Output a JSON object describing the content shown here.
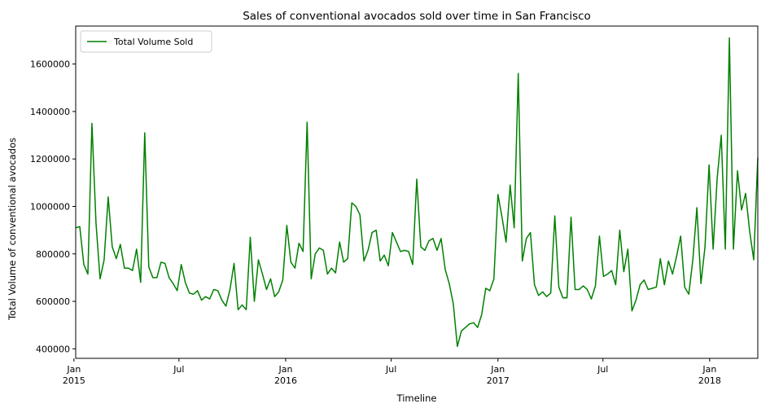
{
  "chart_data": {
    "type": "line",
    "title": "Sales of conventional avocados sold over time in San Francisco",
    "xlabel": "Timeline",
    "ylabel": "Total Volume of conventional avocados",
    "ylim": [
      360000,
      1760000
    ],
    "xlim": [
      "2015-01-04",
      "2018-03-25"
    ],
    "grid": false,
    "legend_position": "top-left",
    "colors": {
      "line": "#008000",
      "axis": "#000000"
    },
    "y_ticks": [
      400000,
      600000,
      800000,
      1000000,
      1200000,
      1400000,
      1600000
    ],
    "y_tick_labels": [
      "400000",
      "600000",
      "800000",
      "1000000",
      "1200000",
      "1400000",
      "1600000"
    ],
    "x_ticks": [
      {
        "date": "2015-01-01",
        "label": "Jan",
        "sublabel": "2015"
      },
      {
        "date": "2015-07-01",
        "label": "Jul",
        "sublabel": ""
      },
      {
        "date": "2016-01-01",
        "label": "Jan",
        "sublabel": "2016"
      },
      {
        "date": "2016-07-01",
        "label": "Jul",
        "sublabel": ""
      },
      {
        "date": "2017-01-01",
        "label": "Jan",
        "sublabel": "2017"
      },
      {
        "date": "2017-07-01",
        "label": "Jul",
        "sublabel": ""
      },
      {
        "date": "2018-01-01",
        "label": "Jan",
        "sublabel": "2018"
      }
    ],
    "series": [
      {
        "name": "Total Volume Sold",
        "color": "#008000",
        "x": [
          "2015-01-04",
          "2015-01-11",
          "2015-01-18",
          "2015-01-25",
          "2015-02-01",
          "2015-02-08",
          "2015-02-15",
          "2015-02-22",
          "2015-03-01",
          "2015-03-08",
          "2015-03-15",
          "2015-03-22",
          "2015-03-29",
          "2015-04-05",
          "2015-04-12",
          "2015-04-19",
          "2015-04-26",
          "2015-05-03",
          "2015-05-10",
          "2015-05-17",
          "2015-05-24",
          "2015-05-31",
          "2015-06-07",
          "2015-06-14",
          "2015-06-21",
          "2015-06-28",
          "2015-07-05",
          "2015-07-12",
          "2015-07-19",
          "2015-07-26",
          "2015-08-02",
          "2015-08-09",
          "2015-08-16",
          "2015-08-23",
          "2015-08-30",
          "2015-09-06",
          "2015-09-13",
          "2015-09-20",
          "2015-09-27",
          "2015-10-04",
          "2015-10-11",
          "2015-10-18",
          "2015-10-25",
          "2015-11-01",
          "2015-11-08",
          "2015-11-15",
          "2015-11-22",
          "2015-11-29",
          "2015-12-06",
          "2015-12-13",
          "2015-12-20",
          "2015-12-27",
          "2016-01-03",
          "2016-01-10",
          "2016-01-17",
          "2016-01-24",
          "2016-01-31",
          "2016-02-07",
          "2016-02-14",
          "2016-02-21",
          "2016-02-28",
          "2016-03-06",
          "2016-03-13",
          "2016-03-20",
          "2016-03-27",
          "2016-04-03",
          "2016-04-10",
          "2016-04-17",
          "2016-04-24",
          "2016-05-01",
          "2016-05-08",
          "2016-05-15",
          "2016-05-22",
          "2016-05-29",
          "2016-06-05",
          "2016-06-12",
          "2016-06-19",
          "2016-06-26",
          "2016-07-03",
          "2016-07-10",
          "2016-07-17",
          "2016-07-24",
          "2016-07-31",
          "2016-08-07",
          "2016-08-14",
          "2016-08-21",
          "2016-08-28",
          "2016-09-04",
          "2016-09-11",
          "2016-09-18",
          "2016-09-25",
          "2016-10-02",
          "2016-10-09",
          "2016-10-16",
          "2016-10-23",
          "2016-10-30",
          "2016-11-06",
          "2016-11-13",
          "2016-11-20",
          "2016-11-27",
          "2016-12-04",
          "2016-12-11",
          "2016-12-18",
          "2016-12-25",
          "2017-01-01",
          "2017-01-08",
          "2017-01-15",
          "2017-01-22",
          "2017-01-29",
          "2017-02-05",
          "2017-02-12",
          "2017-02-19",
          "2017-02-26",
          "2017-03-05",
          "2017-03-12",
          "2017-03-19",
          "2017-03-26",
          "2017-04-02",
          "2017-04-09",
          "2017-04-16",
          "2017-04-23",
          "2017-04-30",
          "2017-05-07",
          "2017-05-14",
          "2017-05-21",
          "2017-05-28",
          "2017-06-04",
          "2017-06-11",
          "2017-06-18",
          "2017-06-25",
          "2017-07-02",
          "2017-07-09",
          "2017-07-16",
          "2017-07-23",
          "2017-07-30",
          "2017-08-06",
          "2017-08-13",
          "2017-08-20",
          "2017-08-27",
          "2017-09-03",
          "2017-09-10",
          "2017-09-17",
          "2017-09-24",
          "2017-10-01",
          "2017-10-08",
          "2017-10-15",
          "2017-10-22",
          "2017-10-29",
          "2017-11-05",
          "2017-11-12",
          "2017-11-19",
          "2017-11-26",
          "2017-12-03",
          "2017-12-10",
          "2017-12-17",
          "2017-12-24",
          "2017-12-31",
          "2018-01-07",
          "2018-01-14",
          "2018-01-21",
          "2018-01-28",
          "2018-02-04",
          "2018-02-11",
          "2018-02-18",
          "2018-02-25",
          "2018-03-04",
          "2018-03-11",
          "2018-03-18",
          "2018-03-25"
        ],
        "values": [
          910000,
          915000,
          755000,
          715000,
          1350000,
          930000,
          695000,
          775000,
          1040000,
          830000,
          780000,
          840000,
          740000,
          740000,
          730000,
          820000,
          680000,
          1310000,
          745000,
          700000,
          700000,
          765000,
          760000,
          700000,
          675000,
          645000,
          755000,
          680000,
          635000,
          630000,
          645000,
          605000,
          620000,
          610000,
          650000,
          645000,
          605000,
          580000,
          650000,
          760000,
          565000,
          585000,
          565000,
          870000,
          600000,
          775000,
          715000,
          650000,
          695000,
          620000,
          640000,
          690000,
          920000,
          765000,
          740000,
          845000,
          810000,
          1355000,
          695000,
          800000,
          825000,
          815000,
          715000,
          740000,
          720000,
          850000,
          765000,
          780000,
          1015000,
          1000000,
          965000,
          770000,
          815000,
          890000,
          900000,
          770000,
          795000,
          750000,
          890000,
          850000,
          810000,
          815000,
          810000,
          755000,
          1115000,
          830000,
          815000,
          855000,
          865000,
          815000,
          865000,
          735000,
          675000,
          590000,
          410000,
          475000,
          490000,
          505000,
          510000,
          490000,
          545000,
          655000,
          645000,
          695000,
          1050000,
          955000,
          850000,
          1090000,
          910000,
          1560000,
          770000,
          865000,
          890000,
          670000,
          625000,
          640000,
          620000,
          635000,
          960000,
          660000,
          615000,
          615000,
          955000,
          650000,
          650000,
          665000,
          650000,
          610000,
          665000,
          875000,
          705000,
          715000,
          730000,
          670000,
          900000,
          725000,
          820000,
          560000,
          605000,
          670000,
          690000,
          650000,
          655000,
          660000,
          780000,
          670000,
          770000,
          715000,
          790000,
          875000,
          660000,
          630000,
          775000,
          995000,
          675000,
          830000,
          1175000,
          820000,
          1120000,
          1300000,
          820000,
          1710000,
          820000,
          1150000,
          985000,
          1055000,
          895000,
          775000,
          1205000
        ]
      }
    ]
  }
}
